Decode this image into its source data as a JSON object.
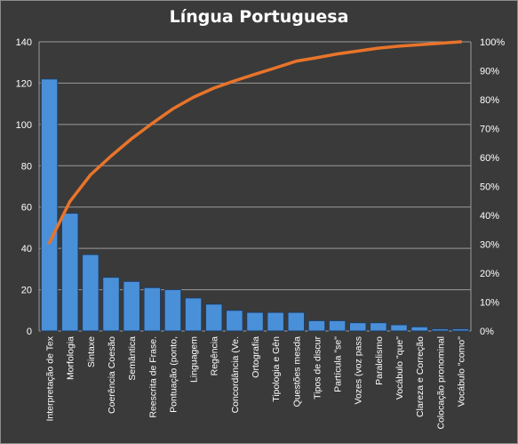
{
  "chart_data": {
    "type": "bar",
    "title": "Língua  Portuguesa",
    "categories": [
      "Interpretação de Tex",
      "Morfologia",
      "Sintaxe",
      "Coerência Coesão",
      "Semântica",
      "Reescrita de Frase.",
      "Pontuação (ponto,",
      "Linguagem",
      "Regência",
      "Concordância (Ve.",
      "Ortografia",
      "Tipologia e Gên",
      "Questões mesda",
      "Tipos de discur",
      "Partícula \"se\"",
      "Vozes (voz pass",
      "Paralelismo",
      "Vocábulo \"que\"",
      "Clareza e Correção",
      "Colocação pronominal",
      "Vocábulo \"como\""
    ],
    "series": [
      {
        "type": "bar",
        "axis": "left",
        "values": [
          122,
          57,
          37,
          26,
          24,
          21,
          20,
          16,
          13,
          10,
          9,
          9,
          9,
          5,
          5,
          4,
          4,
          3,
          2,
          1,
          1
        ]
      },
      {
        "type": "line",
        "axis": "right",
        "values": [
          0.305,
          0.448,
          0.54,
          0.605,
          0.665,
          0.718,
          0.768,
          0.808,
          0.84,
          0.865,
          0.888,
          0.91,
          0.933,
          0.945,
          0.958,
          0.968,
          0.978,
          0.985,
          0.99,
          0.995,
          1.0
        ]
      }
    ],
    "y_left": {
      "ylim": [
        0,
        140
      ],
      "ticks": [
        0,
        20,
        40,
        60,
        80,
        100,
        120,
        140
      ]
    },
    "y_right": {
      "ylim": [
        0,
        1
      ],
      "ticks": [
        "0%",
        "10%",
        "20%",
        "30%",
        "40%",
        "50%",
        "60%",
        "70%",
        "80%",
        "90%",
        "100%"
      ]
    },
    "grid": true,
    "legend": "none",
    "colors": {
      "background": "#3a3a3a",
      "bar_fill": "#4a90d9",
      "bar_edge": "#1f3d63",
      "line": "#e8742a",
      "grid": "#9a9a9a",
      "text": "#ffffff"
    }
  }
}
